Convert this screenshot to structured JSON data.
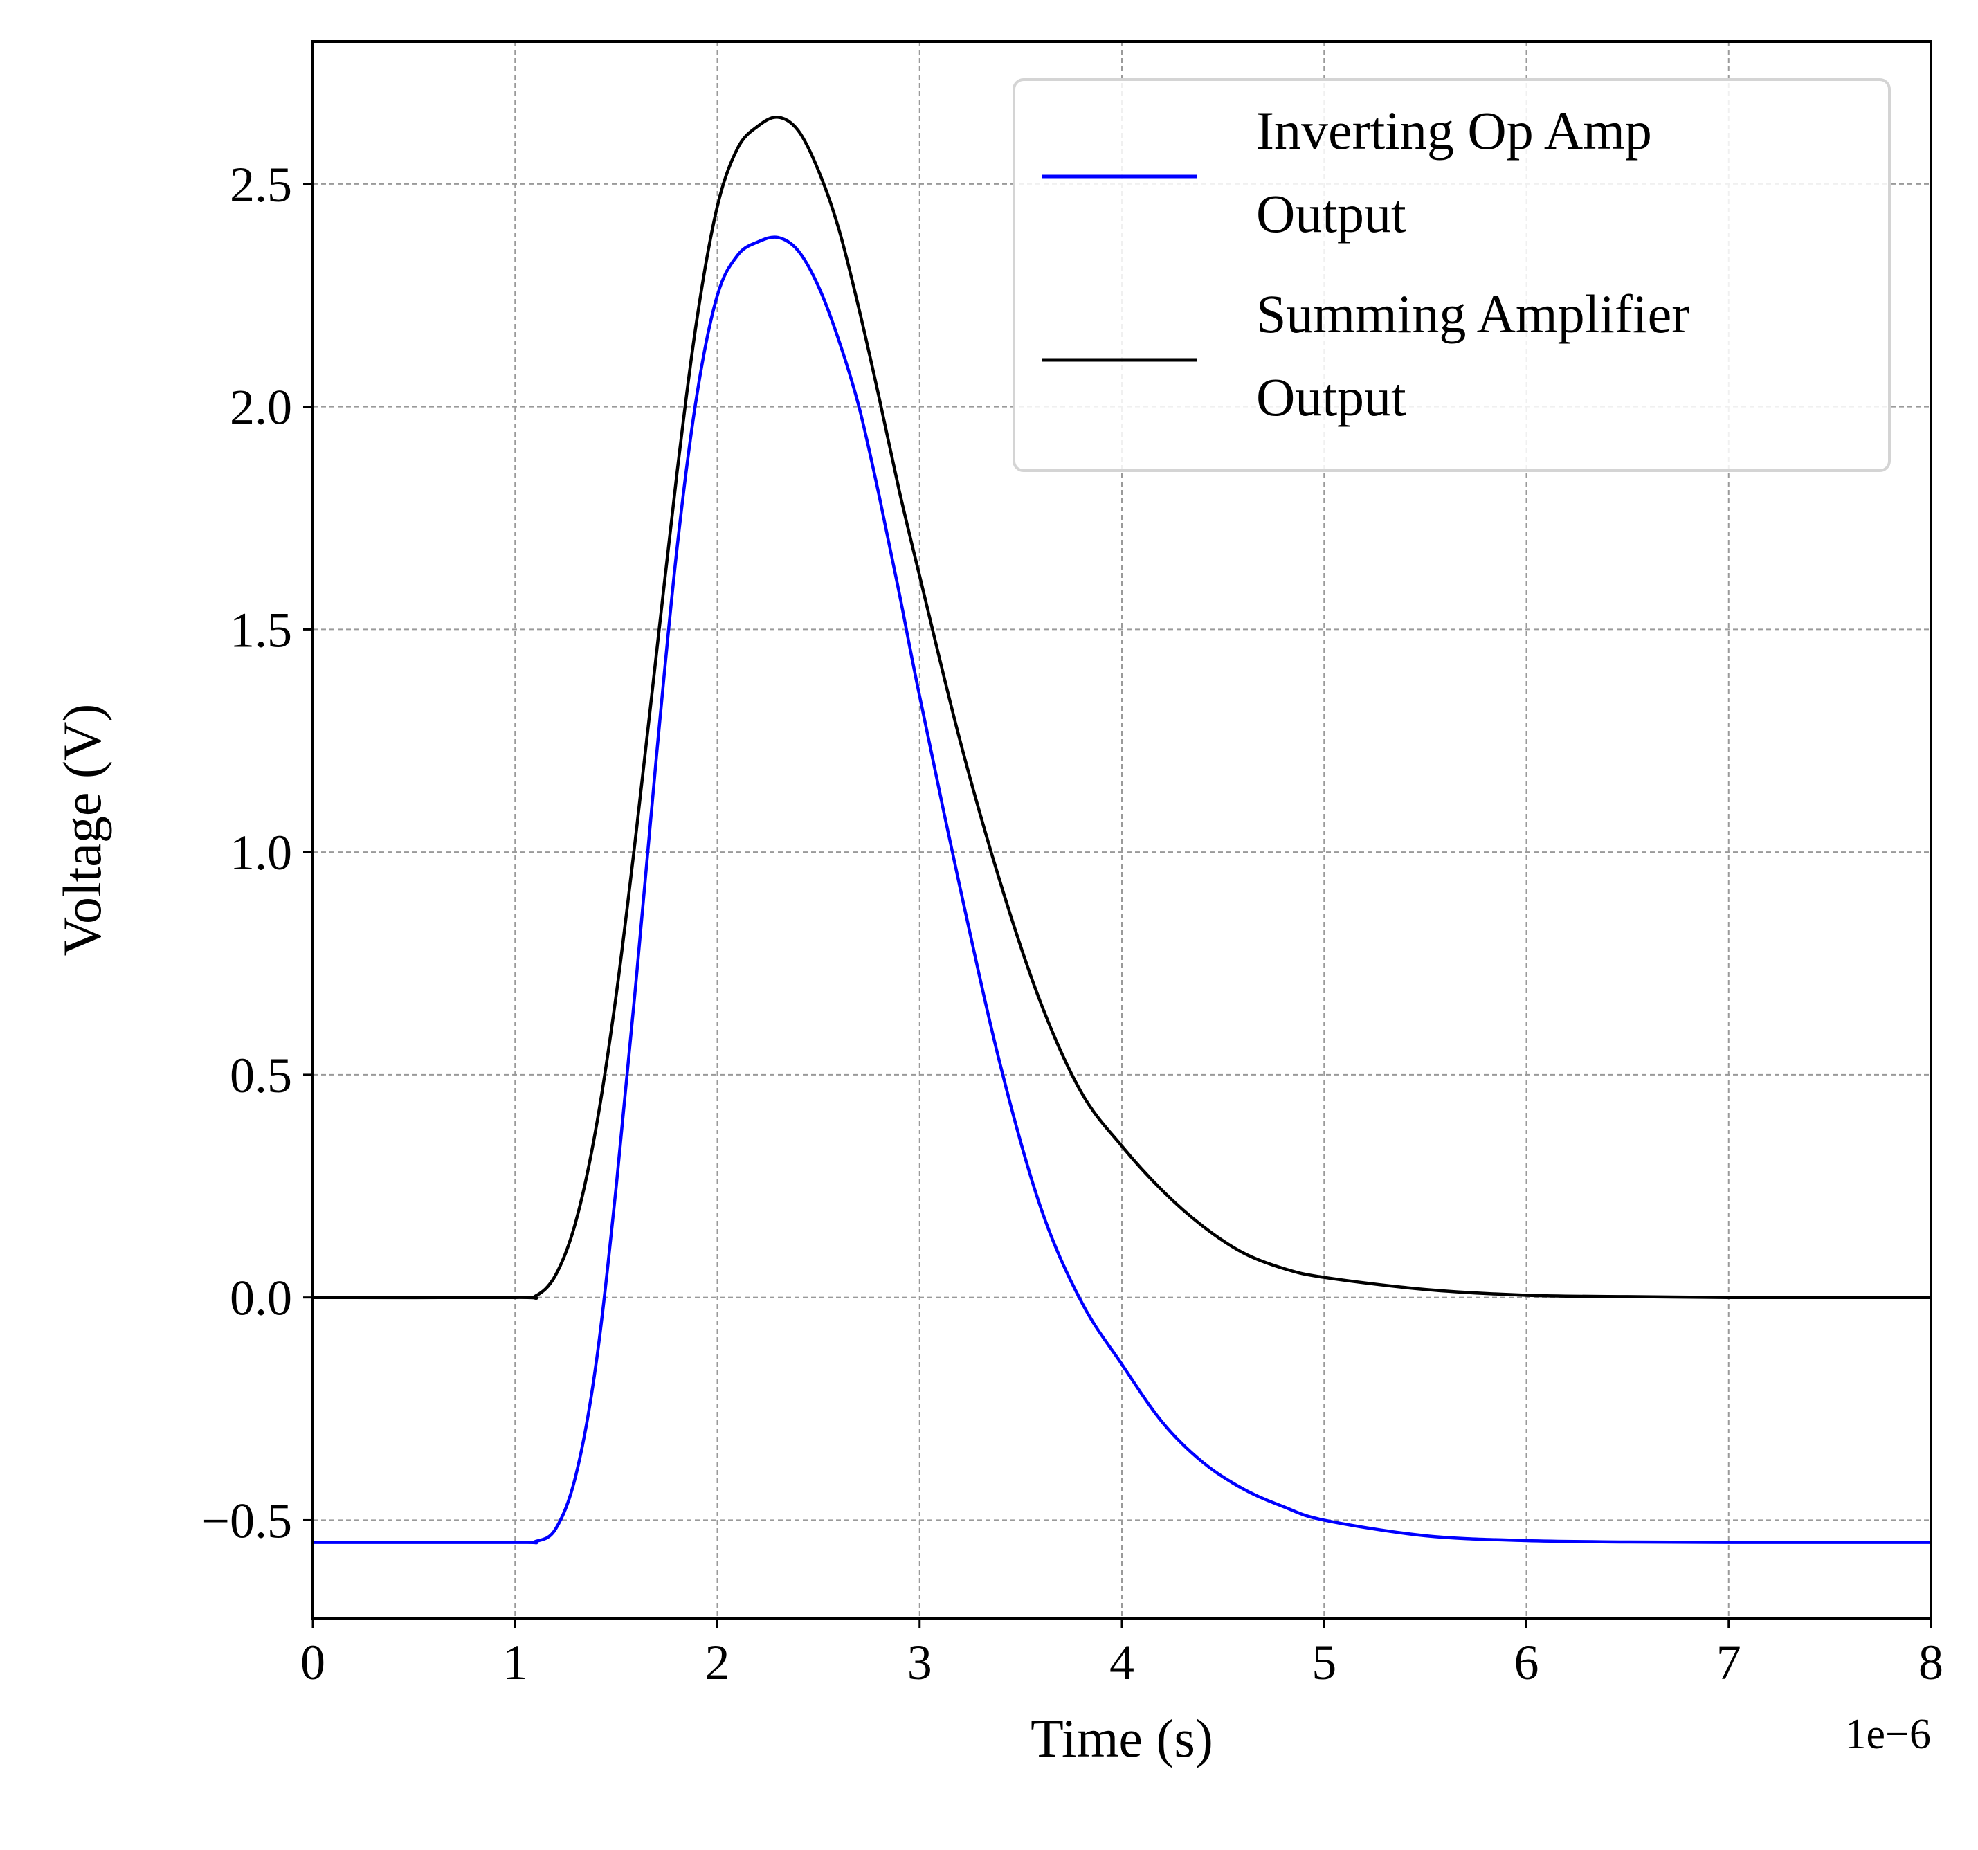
{
  "chart_data": {
    "type": "line",
    "xlabel": "Time (s)",
    "ylabel": "Voltage (V)",
    "x_offset_label": "1e−6",
    "xlim": [
      0,
      8e-06
    ],
    "ylim": [
      -0.72,
      2.82
    ],
    "xticks": [
      {
        "value": 0,
        "label": "0"
      },
      {
        "value": 1e-06,
        "label": "1"
      },
      {
        "value": 2e-06,
        "label": "2"
      },
      {
        "value": 3e-06,
        "label": "3"
      },
      {
        "value": 4e-06,
        "label": "4"
      },
      {
        "value": 5e-06,
        "label": "5"
      },
      {
        "value": 6e-06,
        "label": "6"
      },
      {
        "value": 7e-06,
        "label": "7"
      },
      {
        "value": 8e-06,
        "label": "8"
      }
    ],
    "yticks": [
      {
        "value": -0.5,
        "label": "−0.5"
      },
      {
        "value": 0.0,
        "label": "0.0"
      },
      {
        "value": 0.5,
        "label": "0.5"
      },
      {
        "value": 1.0,
        "label": "1.0"
      },
      {
        "value": 1.5,
        "label": "1.5"
      },
      {
        "value": 2.0,
        "label": "2.0"
      },
      {
        "value": 2.5,
        "label": "2.5"
      }
    ],
    "grid": true,
    "legend_position": "top-right",
    "series": [
      {
        "name": "Inverting Op Amp\nOutput",
        "color": "#0000ff",
        "x": [
          0,
          1e-06,
          1.1e-06,
          1.2e-06,
          1.3e-06,
          1.4e-06,
          1.5e-06,
          1.6e-06,
          1.7e-06,
          1.8e-06,
          1.9e-06,
          2e-06,
          2.1e-06,
          2.2e-06,
          2.3e-06,
          2.4e-06,
          2.5e-06,
          2.6e-06,
          2.7e-06,
          2.8e-06,
          2.9e-06,
          3e-06,
          3.2e-06,
          3.4e-06,
          3.6e-06,
          3.8e-06,
          4e-06,
          4.2e-06,
          4.4e-06,
          4.6e-06,
          4.8e-06,
          5e-06,
          5.5e-06,
          6e-06,
          6.5e-06,
          7e-06,
          7.5e-06,
          8e-06
        ],
        "y": [
          -0.55,
          -0.55,
          -0.548,
          -0.52,
          -0.4,
          -0.15,
          0.25,
          0.72,
          1.22,
          1.68,
          2.03,
          2.25,
          2.34,
          2.37,
          2.38,
          2.35,
          2.27,
          2.15,
          2.0,
          1.8,
          1.58,
          1.35,
          0.92,
          0.52,
          0.2,
          -0.01,
          -0.15,
          -0.28,
          -0.37,
          -0.43,
          -0.47,
          -0.5,
          -0.535,
          -0.546,
          -0.549,
          -0.55,
          -0.55,
          -0.55
        ]
      },
      {
        "name": "Summing Amplifier\nOutput",
        "color": "#000000",
        "x": [
          0,
          1e-06,
          1.1e-06,
          1.2e-06,
          1.3e-06,
          1.4e-06,
          1.5e-06,
          1.6e-06,
          1.7e-06,
          1.8e-06,
          1.9e-06,
          2e-06,
          2.1e-06,
          2.2e-06,
          2.3e-06,
          2.4e-06,
          2.5e-06,
          2.6e-06,
          2.7e-06,
          2.8e-06,
          2.9e-06,
          3e-06,
          3.2e-06,
          3.4e-06,
          3.6e-06,
          3.8e-06,
          4e-06,
          4.2e-06,
          4.4e-06,
          4.6e-06,
          4.8e-06,
          5e-06,
          5.5e-06,
          6e-06,
          6.5e-06,
          7e-06,
          7.5e-06,
          8e-06
        ],
        "y": [
          0.0,
          0.0,
          0.003,
          0.05,
          0.17,
          0.38,
          0.68,
          1.05,
          1.45,
          1.85,
          2.2,
          2.45,
          2.58,
          2.63,
          2.65,
          2.62,
          2.53,
          2.4,
          2.22,
          2.02,
          1.81,
          1.62,
          1.25,
          0.93,
          0.66,
          0.46,
          0.34,
          0.24,
          0.16,
          0.1,
          0.065,
          0.045,
          0.018,
          0.005,
          0.002,
          0.0,
          0.0,
          0.0
        ]
      }
    ]
  }
}
